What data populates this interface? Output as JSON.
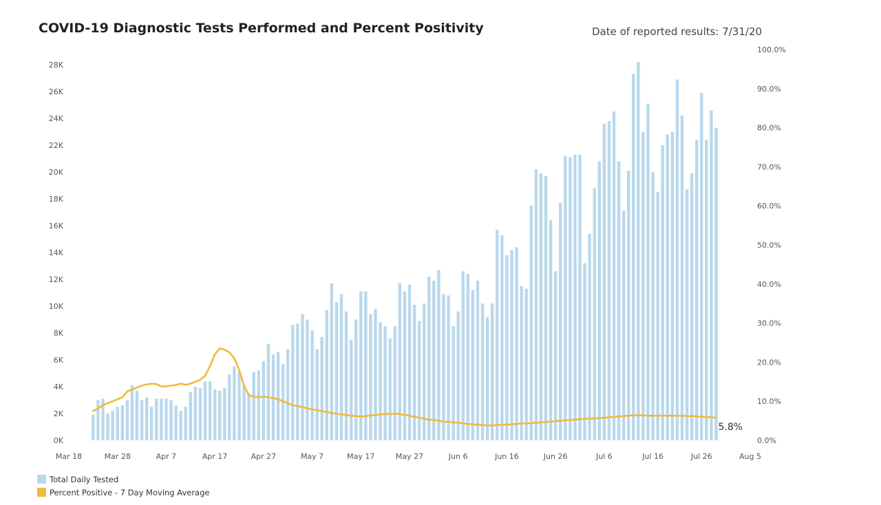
{
  "header": {
    "title": "COVID-19 Diagnostic Tests Performed and Percent Positivity",
    "date_label": "Date of reported results: 7/31/20"
  },
  "chart_data": {
    "type": "bar+line",
    "title": "COVID-19 Diagnostic Tests Performed and Percent Positivity",
    "start_date": "2020-03-23",
    "x_ticks": [
      "Mar 18",
      "Mar 28",
      "Apr 7",
      "Apr 17",
      "Apr 27",
      "May 7",
      "May 17",
      "May 27",
      "Jun 6",
      "Jun 16",
      "Jun 26",
      "Jul 6",
      "Jul 16",
      "Jul 26",
      "Aug 5"
    ],
    "x_range": [
      "2020-03-18",
      "2020-08-05"
    ],
    "y_left": {
      "ticks": [
        "0K",
        "2K",
        "4K",
        "6K",
        "8K",
        "10K",
        "12K",
        "14K",
        "16K",
        "18K",
        "20K",
        "22K",
        "24K",
        "26K",
        "28K"
      ],
      "range": [
        0,
        28000
      ]
    },
    "y_right": {
      "ticks": [
        "0.0%",
        "10.0%",
        "20.0%",
        "30.0%",
        "40.0%",
        "50.0%",
        "60.0%",
        "70.0%",
        "80.0%",
        "90.0%",
        "100.0%"
      ],
      "range": [
        0,
        100
      ]
    },
    "series": [
      {
        "name": "Total Daily Tested",
        "type": "bar",
        "color": "#b9d8ec",
        "values": [
          1900,
          3000,
          3100,
          2000,
          2200,
          2500,
          2600,
          3000,
          4100,
          3700,
          3000,
          3200,
          2500,
          3100,
          3100,
          3100,
          3000,
          2600,
          2200,
          2500,
          3600,
          4000,
          3900,
          4400,
          4400,
          3800,
          3700,
          3900,
          4900,
          5500,
          5100,
          4100,
          3500,
          5100,
          5200,
          5900,
          7200,
          6400,
          6600,
          5700,
          6800,
          8600,
          8700,
          9400,
          9000,
          8200,
          6800,
          7700,
          9700,
          11700,
          10300,
          10900,
          9600,
          7500,
          9000,
          11100,
          11100,
          9400,
          9800,
          8800,
          8500,
          7600,
          8500,
          11700,
          11100,
          11600,
          10100,
          8900,
          10200,
          12200,
          11900,
          12700,
          10900,
          10800,
          8500,
          9600,
          12600,
          12400,
          11200,
          11900,
          10200,
          9200,
          10200,
          15700,
          15300,
          13800,
          14200,
          14400,
          11500,
          11300,
          17500,
          20200,
          19900,
          19700,
          16400,
          12600,
          17700,
          21200,
          21100,
          21300,
          21300,
          13200,
          15400,
          18800,
          20800,
          23600,
          23800,
          24500,
          20800,
          17100,
          20100,
          27300,
          28200,
          23000,
          25100,
          20000,
          18500,
          22000,
          22800,
          23000,
          26900,
          24200,
          18700,
          19900,
          22400,
          25900,
          22400,
          24600,
          23300
        ]
      },
      {
        "name": "Percent Positive - 7 Day Moving Average",
        "type": "line",
        "color": "#f2b93b",
        "values": [
          7.5,
          8.2,
          9.0,
          9.5,
          10.0,
          10.5,
          11.0,
          12.5,
          13.0,
          13.5,
          14.0,
          14.3,
          14.5,
          14.4,
          13.8,
          13.8,
          14.0,
          14.2,
          14.5,
          14.2,
          14.5,
          15.0,
          15.5,
          16.5,
          19.0,
          22.0,
          23.5,
          23.2,
          22.5,
          21.0,
          18.0,
          14.0,
          11.5,
          11.2,
          11.0,
          11.2,
          11.0,
          10.8,
          10.5,
          10.0,
          9.5,
          9.0,
          8.8,
          8.5,
          8.2,
          7.9,
          7.7,
          7.5,
          7.2,
          7.0,
          6.8,
          6.6,
          6.5,
          6.3,
          6.2,
          6.1,
          6.2,
          6.4,
          6.5,
          6.6,
          6.7,
          6.8,
          6.8,
          6.7,
          6.5,
          6.3,
          6.0,
          5.8,
          5.5,
          5.3,
          5.2,
          5.0,
          4.8,
          4.7,
          4.6,
          4.5,
          4.3,
          4.2,
          4.1,
          4.0,
          3.9,
          3.8,
          3.8,
          3.9,
          4.0,
          4.0,
          4.1,
          4.2,
          4.3,
          4.3,
          4.4,
          4.5,
          4.6,
          4.7,
          4.8,
          4.9,
          5.0,
          5.1,
          5.2,
          5.3,
          5.4,
          5.5,
          5.6,
          5.6,
          5.7,
          5.8,
          5.9,
          6.0,
          6.1,
          6.2,
          6.3,
          6.4,
          6.4,
          6.4,
          6.3,
          6.3,
          6.3,
          6.3,
          6.3,
          6.3,
          6.3,
          6.3,
          6.2,
          6.2,
          6.1,
          6.0,
          6.0,
          5.9,
          5.8
        ]
      }
    ],
    "end_label": "5.8%",
    "legend": [
      "Total Daily Tested",
      "Percent Positive - 7 Day Moving Average"
    ],
    "legend_position": "bottom-left"
  }
}
